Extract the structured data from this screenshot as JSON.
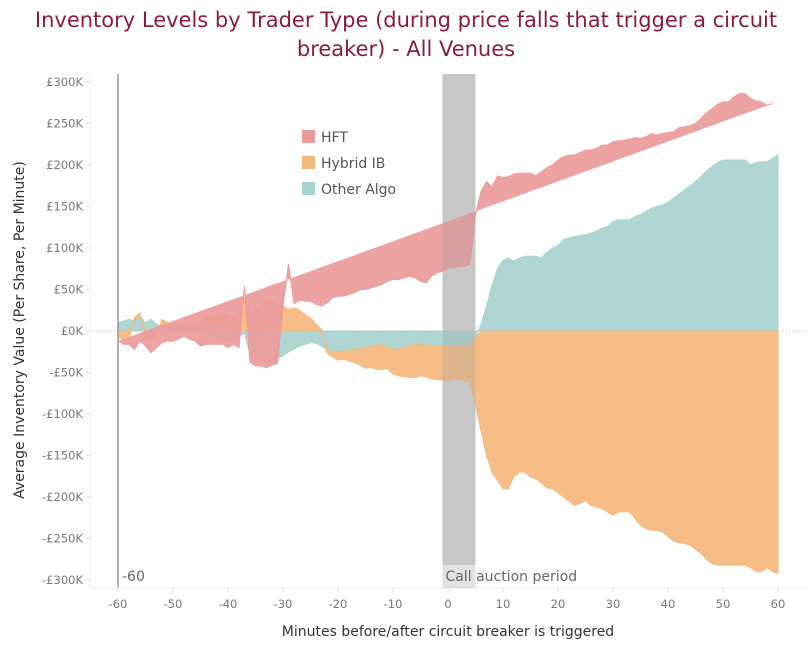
{
  "chart_data": {
    "type": "area",
    "stacked": true,
    "title": "Inventory Levels by Trader Type (during price falls that trigger a circuit breaker) - All Venues",
    "xlabel": "Minutes before/after circuit breaker is triggered",
    "ylabel": "Average Inventory Value (Per Share, Per Minute)",
    "xlim": [
      -65,
      65
    ],
    "ylim": [
      -300000,
      300000
    ],
    "x_ticks": [
      -60,
      -50,
      -40,
      -30,
      -20,
      -10,
      0,
      10,
      20,
      30,
      40,
      50,
      60
    ],
    "y_ticks": [
      {
        "value": 300000,
        "label": "£300K"
      },
      {
        "value": 250000,
        "label": "£250K"
      },
      {
        "value": 200000,
        "label": "£200K"
      },
      {
        "value": 150000,
        "label": "£150K"
      },
      {
        "value": 100000,
        "label": "£100K"
      },
      {
        "value": 50000,
        "label": "£50K"
      },
      {
        "value": 0,
        "label": "£0K"
      },
      {
        "value": -50000,
        "label": "-£50K"
      },
      {
        "value": -100000,
        "label": "-£100K"
      },
      {
        "value": -150000,
        "label": "-£150K"
      },
      {
        "value": -200000,
        "label": "-£200K"
      },
      {
        "value": -250000,
        "label": "-£250K"
      },
      {
        "value": -300000,
        "label": "-£300K"
      }
    ],
    "grid": false,
    "legend_position": "top-left-inside",
    "annotations": [
      {
        "type": "reference_line",
        "x": -60,
        "label": "-60"
      },
      {
        "type": "band",
        "x_start": -1,
        "x_end": 5,
        "label": "Call auction period"
      }
    ],
    "x": [
      -60,
      -59,
      -58,
      -57,
      -56,
      -55,
      -54,
      -53,
      -52,
      -51,
      -50,
      -49,
      -48,
      -47,
      -46,
      -45,
      -44,
      -43,
      -42,
      -41,
      -40,
      -39,
      -38,
      -37,
      -36,
      -35,
      -34,
      -33,
      -32,
      -31,
      -30,
      -29,
      -28,
      -27,
      -26,
      -25,
      -24,
      -23,
      -22,
      -21,
      -20,
      -19,
      -18,
      -17,
      -16,
      -15,
      -14,
      -13,
      -12,
      -11,
      -10,
      -9,
      -8,
      -7,
      -6,
      -5,
      -4,
      -3,
      -2,
      -1,
      0,
      1,
      2,
      3,
      4,
      5,
      6,
      7,
      8,
      9,
      10,
      11,
      12,
      13,
      14,
      15,
      16,
      17,
      18,
      19,
      20,
      21,
      22,
      23,
      24,
      25,
      26,
      27,
      28,
      29,
      30,
      31,
      32,
      33,
      34,
      35,
      36,
      37,
      38,
      39,
      40,
      41,
      42,
      43,
      44,
      45,
      46,
      47,
      48,
      49,
      50,
      51,
      52,
      53,
      54,
      55,
      56,
      57,
      58,
      59,
      60
    ],
    "series": [
      {
        "name": "Other Algo",
        "color": "#a9d3d0",
        "values": [
          10,
          12,
          14,
          12,
          18,
          10,
          14,
          8,
          6,
          4,
          3,
          2,
          3,
          2,
          1,
          -2,
          -4,
          -6,
          -8,
          -10,
          -14,
          -12,
          -6,
          -3,
          -28,
          -34,
          -36,
          -38,
          -35,
          -33,
          -30,
          -25,
          -22,
          -18,
          -16,
          -14,
          -15,
          -18,
          -22,
          -25,
          -25,
          -24,
          -24,
          -23,
          -21,
          -20,
          -19,
          -18,
          -16,
          -20,
          -22,
          -22,
          -20,
          -18,
          -16,
          -16,
          -17,
          -18,
          -18,
          -19,
          -18,
          -18,
          -18,
          -18,
          -18,
          -8,
          8,
          30,
          55,
          75,
          85,
          88,
          84,
          88,
          90,
          90,
          90,
          88,
          95,
          100,
          103,
          110,
          112,
          114,
          115,
          116,
          118,
          120,
          124,
          126,
          132,
          134,
          134,
          134,
          138,
          140,
          144,
          148,
          150,
          152,
          155,
          160,
          165,
          170,
          175,
          180,
          186,
          193,
          198,
          203,
          206,
          206,
          206,
          206,
          206,
          200,
          203,
          204,
          204,
          208,
          212
        ]
      },
      {
        "name": "Hybrid IB",
        "color": "#f5b87c",
        "values": [
          -8,
          -10,
          -10,
          4,
          4,
          -10,
          -10,
          -6,
          8,
          6,
          4,
          8,
          4,
          4,
          2,
          12,
          16,
          18,
          20,
          22,
          20,
          16,
          22,
          40,
          20,
          24,
          30,
          40,
          35,
          32,
          30,
          26,
          28,
          25,
          20,
          16,
          8,
          2,
          -4,
          -6,
          -10,
          -10,
          -12,
          -15,
          -20,
          -25,
          -25,
          -28,
          -30,
          -25,
          -30,
          -32,
          -35,
          -38,
          -40,
          -38,
          -38,
          -40,
          -40,
          -40,
          -42,
          -40,
          -40,
          -42,
          -43,
          -80,
          -120,
          -150,
          -170,
          -180,
          -190,
          -190,
          -175,
          -170,
          -170,
          -176,
          -178,
          -183,
          -189,
          -190,
          -195,
          -200,
          -205,
          -210,
          -208,
          -204,
          -210,
          -212,
          -214,
          -218,
          -222,
          -218,
          -218,
          -218,
          -226,
          -234,
          -238,
          -240,
          -240,
          -242,
          -247,
          -253,
          -255,
          -256,
          -258,
          -263,
          -268,
          -275,
          -280,
          -282,
          -282,
          -282,
          -282,
          -282,
          -282,
          -285,
          -290,
          -290,
          -285,
          -290,
          -292
        ]
      },
      {
        "name": "HFT",
        "color": "#ec9a9b",
        "values": [
          -4,
          -6,
          -6,
          -22,
          -12,
          -8,
          -16,
          -14,
          -14,
          -12,
          -12,
          -10,
          -6,
          -10,
          -12,
          -16,
          -12,
          -10,
          -8,
          -6,
          -6,
          -4,
          -14,
          14,
          -10,
          -8,
          -6,
          -6,
          -6,
          -6,
          0,
          55,
          5,
          12,
          16,
          20,
          24,
          28,
          34,
          40,
          42,
          42,
          44,
          46,
          50,
          50,
          52,
          54,
          56,
          60,
          62,
          62,
          64,
          66,
          64,
          60,
          58,
          66,
          70,
          72,
          76,
          76,
          78,
          78,
          80,
          140,
          160,
          150,
          118,
          112,
          100,
          98,
          105,
          102,
          100,
          100,
          97,
          104,
          102,
          100,
          103,
          100,
          100,
          98,
          100,
          102,
          100,
          100,
          100,
          98,
          96,
          95,
          96,
          97,
          95,
          92,
          90,
          90,
          86,
          86,
          84,
          80,
          80,
          76,
          72,
          70,
          70,
          70,
          70,
          70,
          70,
          70,
          76,
          80,
          80,
          80,
          74,
          72,
          68,
          66
        ]
      }
    ]
  },
  "legend": {
    "items": [
      {
        "label": "HFT",
        "color": "#ec9a9b"
      },
      {
        "label": "Hybrid IB",
        "color": "#f5b87c"
      },
      {
        "label": "Other Algo",
        "color": "#a9d3d0"
      }
    ]
  }
}
